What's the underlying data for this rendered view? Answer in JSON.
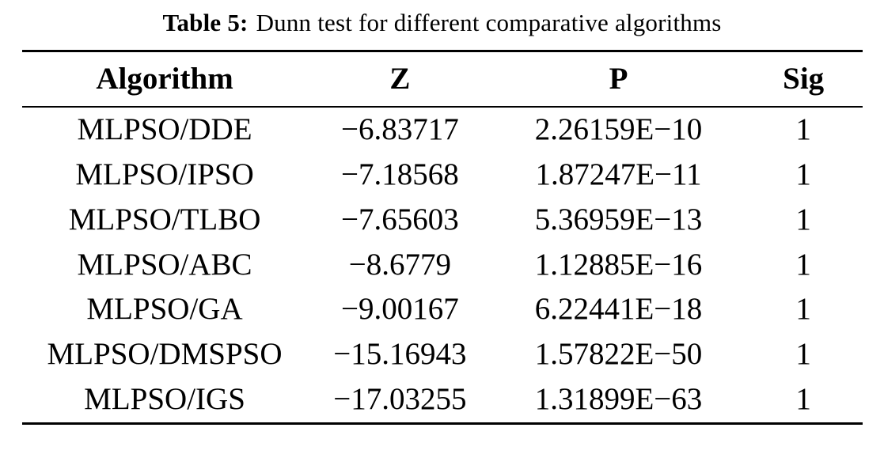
{
  "caption": {
    "label": "Table 5:",
    "text": "Dunn test for different comparative algorithms"
  },
  "chart_data": {
    "type": "table",
    "title": "Table 5: Dunn test for different comparative algorithms",
    "columns": [
      "Algorithm",
      "Z",
      "P",
      "Sig"
    ],
    "rows": [
      [
        "MLPSO/DDE",
        "−6.83717",
        "2.26159E−10",
        "1"
      ],
      [
        "MLPSO/IPSO",
        "−7.18568",
        "1.87247E−11",
        "1"
      ],
      [
        "MLPSO/TLBO",
        "−7.65603",
        "5.36959E−13",
        "1"
      ],
      [
        "MLPSO/ABC",
        "−8.6779",
        "1.12885E−16",
        "1"
      ],
      [
        "MLPSO/GA",
        "−9.00167",
        "6.22441E−18",
        "1"
      ],
      [
        "MLPSO/DMSPSO",
        "−15.16943",
        "1.57822E−50",
        "1"
      ],
      [
        "MLPSO/IGS",
        "−17.03255",
        "1.31899E−63",
        "1"
      ]
    ]
  }
}
